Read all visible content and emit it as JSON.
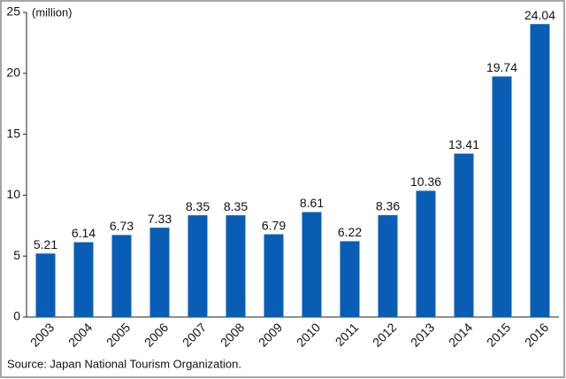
{
  "chart_data": {
    "type": "bar",
    "unit_label": "(million)",
    "source": "Source: Japan National Tourism Organization.",
    "categories": [
      "2003",
      "2004",
      "2005",
      "2006",
      "2007",
      "2008",
      "2009",
      "2010",
      "2011",
      "2012",
      "2013",
      "2014",
      "2015",
      "2016"
    ],
    "values": [
      5.21,
      6.14,
      6.73,
      7.33,
      8.35,
      8.35,
      6.79,
      8.61,
      6.22,
      8.36,
      10.36,
      13.41,
      19.74,
      24.04
    ],
    "color": "#0a5db5",
    "ylim": [
      0,
      25
    ],
    "yticks": [
      0,
      5,
      10,
      15,
      20,
      25
    ],
    "grid": false
  }
}
